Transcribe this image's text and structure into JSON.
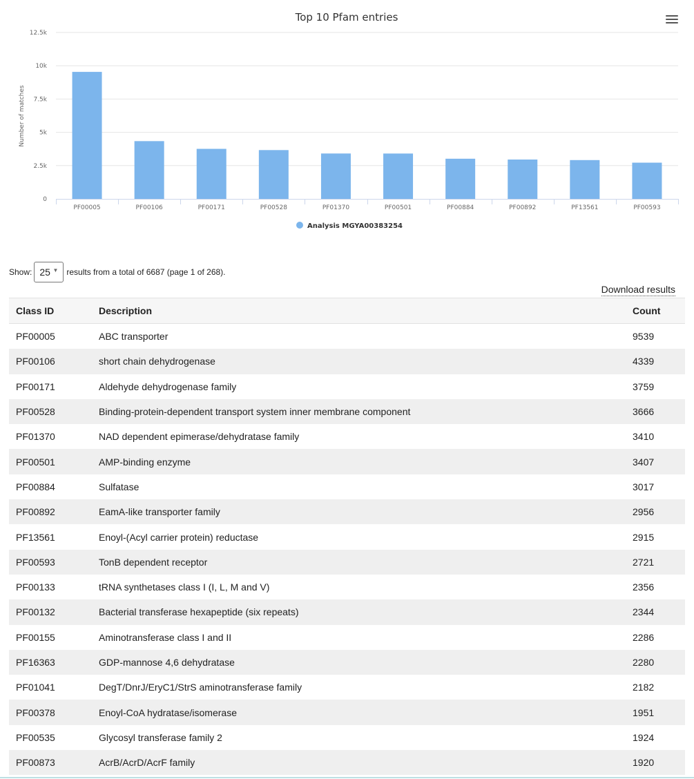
{
  "chart_data": {
    "type": "bar",
    "title": "Top 10 Pfam entries",
    "ylabel": "Number of matches",
    "xlabel": "",
    "categories": [
      "PF00005",
      "PF00106",
      "PF00171",
      "PF00528",
      "PF01370",
      "PF00501",
      "PF00884",
      "PF00892",
      "PF13561",
      "PF00593"
    ],
    "series": [
      {
        "name": "Analysis MGYA00383254",
        "values": [
          9539,
          4339,
          3759,
          3666,
          3410,
          3407,
          3017,
          2956,
          2915,
          2721
        ]
      }
    ],
    "ylim": [
      0,
      12500
    ],
    "yticks": [
      0,
      2500,
      5000,
      7500,
      10000,
      12500
    ],
    "ytick_labels": [
      "0",
      "2.5k",
      "5k",
      "7.5k",
      "10k",
      "12.5k"
    ],
    "grid": true,
    "legend_position": "bottom-center",
    "colors": {
      "bar": "#7cb5ec",
      "grid": "#e6e6e6",
      "axis": "#ccd6eb"
    }
  },
  "pager": {
    "show_label": "Show:",
    "page_size": "25",
    "summary": "results from a total of 6687 (page 1 of 268)."
  },
  "download_label": "Download results",
  "table": {
    "headers": {
      "id": "Class ID",
      "description": "Description",
      "count": "Count"
    },
    "rows": [
      {
        "id": "PF00005",
        "description": "ABC transporter",
        "count": "9539"
      },
      {
        "id": "PF00106",
        "description": "short chain dehydrogenase",
        "count": "4339"
      },
      {
        "id": "PF00171",
        "description": "Aldehyde dehydrogenase family",
        "count": "3759"
      },
      {
        "id": "PF00528",
        "description": "Binding-protein-dependent transport system inner membrane component",
        "count": "3666"
      },
      {
        "id": "PF01370",
        "description": "NAD dependent epimerase/dehydratase family",
        "count": "3410"
      },
      {
        "id": "PF00501",
        "description": "AMP-binding enzyme",
        "count": "3407"
      },
      {
        "id": "PF00884",
        "description": "Sulfatase",
        "count": "3017"
      },
      {
        "id": "PF00892",
        "description": "EamA-like transporter family",
        "count": "2956"
      },
      {
        "id": "PF13561",
        "description": "Enoyl-(Acyl carrier protein) reductase",
        "count": "2915"
      },
      {
        "id": "PF00593",
        "description": "TonB dependent receptor",
        "count": "2721"
      },
      {
        "id": "PF00133",
        "description": "tRNA synthetases class I (I, L, M and V)",
        "count": "2356"
      },
      {
        "id": "PF00132",
        "description": "Bacterial transferase hexapeptide (six repeats)",
        "count": "2344"
      },
      {
        "id": "PF00155",
        "description": "Aminotransferase class I and II",
        "count": "2286"
      },
      {
        "id": "PF16363",
        "description": "GDP-mannose 4,6 dehydratase",
        "count": "2280"
      },
      {
        "id": "PF01041",
        "description": "DegT/DnrJ/EryC1/StrS aminotransferase family",
        "count": "2182"
      },
      {
        "id": "PF00378",
        "description": "Enoyl-CoA hydratase/isomerase",
        "count": "1951"
      },
      {
        "id": "PF00535",
        "description": "Glycosyl transferase family 2",
        "count": "1924"
      },
      {
        "id": "PF00873",
        "description": "AcrB/AcrD/AcrF family",
        "count": "1920"
      }
    ]
  }
}
